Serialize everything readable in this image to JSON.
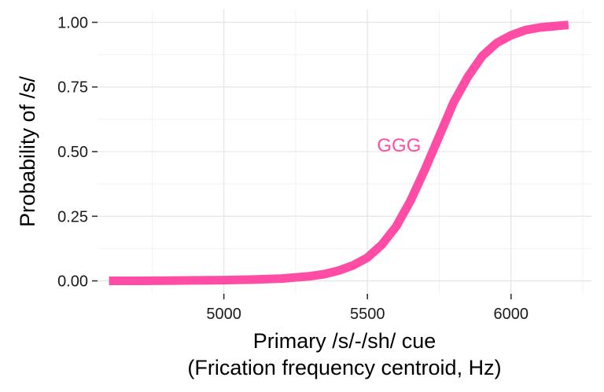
{
  "chart_data": {
    "type": "line",
    "xlabel_line1": "Primary /s/-/sh/ cue",
    "xlabel_line2": "(Frication frequency centroid, Hz)",
    "ylabel": "Probability of /s/",
    "xlim": [
      4560,
      6280
    ],
    "ylim": [
      -0.05,
      1.05
    ],
    "x_ticks": [
      5000,
      5500,
      6000
    ],
    "x_tick_labels": [
      "5000",
      "5500",
      "6000"
    ],
    "x_minor_ticks": [
      4750,
      5250,
      5750,
      6250
    ],
    "y_ticks": [
      0,
      0.25,
      0.5,
      0.75,
      1
    ],
    "y_tick_labels": [
      "0.00",
      "0.25",
      "0.50",
      "0.75",
      "1.00"
    ],
    "y_minor_ticks": [
      0.125,
      0.375,
      0.625,
      0.875
    ],
    "grid": true,
    "legend": "none",
    "series": [
      {
        "name": "GGG",
        "color": "#ff4da6",
        "x": [
          4600,
          4700,
          4800,
          4900,
          5000,
          5100,
          5200,
          5300,
          5350,
          5400,
          5450,
          5500,
          5550,
          5600,
          5650,
          5700,
          5750,
          5800,
          5850,
          5900,
          5950,
          6000,
          6050,
          6100,
          6150,
          6200
        ],
        "y": [
          0.0,
          0.0,
          0.001,
          0.002,
          0.003,
          0.005,
          0.009,
          0.018,
          0.026,
          0.04,
          0.06,
          0.09,
          0.14,
          0.21,
          0.31,
          0.43,
          0.56,
          0.69,
          0.79,
          0.87,
          0.92,
          0.95,
          0.97,
          0.98,
          0.985,
          0.99
        ]
      }
    ],
    "annotation": {
      "text": "GGG",
      "x": 5610,
      "y": 0.52,
      "color": "#ff4da6"
    }
  }
}
